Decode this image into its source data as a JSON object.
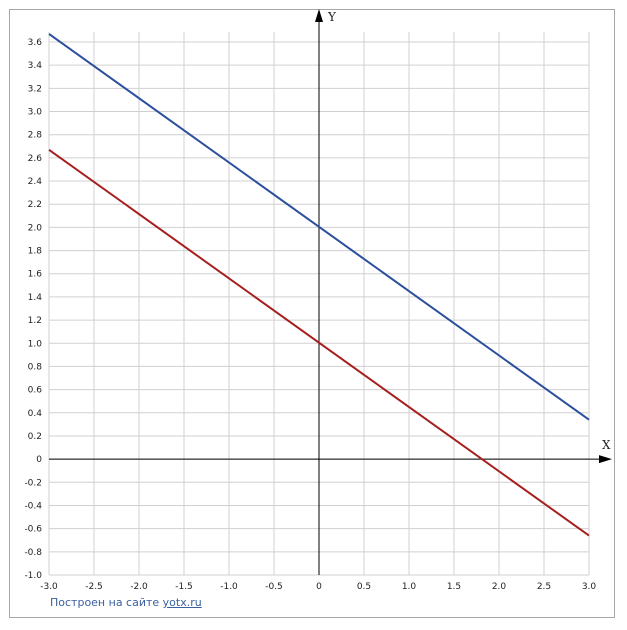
{
  "chart_data": {
    "type": "line",
    "xlabel": "X",
    "ylabel": "Y",
    "xlim": [
      -3.0,
      3.0
    ],
    "ylim": [
      -1.0,
      3.6
    ],
    "grid": true,
    "x_ticks": [
      "-3.0",
      "-2.5",
      "-2.0",
      "-1.5",
      "-1.0",
      "-0.5",
      "0",
      "0.5",
      "1.0",
      "1.5",
      "2.0",
      "2.5",
      "3.0"
    ],
    "y_ticks": [
      "-1.0",
      "-0.8",
      "-0.6",
      "-0.4",
      "-0.2",
      "0",
      "0.2",
      "0.4",
      "0.6",
      "0.8",
      "1.0",
      "1.2",
      "1.4",
      "1.6",
      "1.8",
      "2.0",
      "2.2",
      "2.4",
      "2.6",
      "2.8",
      "3.0",
      "3.2",
      "3.4",
      "3.6"
    ],
    "series": [
      {
        "color": "#2b4f9e",
        "x": [
          -3.0,
          3.0
        ],
        "y": [
          3.67,
          0.34
        ]
      },
      {
        "color": "#a51f1f",
        "x": [
          -3.0,
          3.0
        ],
        "y": [
          2.67,
          -0.66
        ]
      }
    ]
  },
  "footer": {
    "prefix": "Построен на сайте ",
    "link": "yotx.ru"
  }
}
